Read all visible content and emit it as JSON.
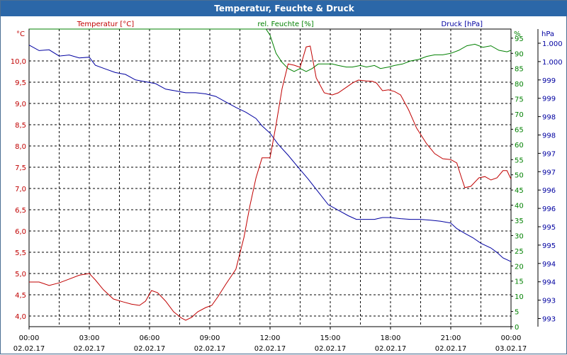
{
  "window": {
    "title": "Temperatur, Feuchte & Druck"
  },
  "legend": {
    "temp": "Temperatur [°C]",
    "hum": "rel. Feuchte [%]",
    "press": "Druck [hPa]"
  },
  "axes": {
    "temp_unit": "°C",
    "hum_unit": "%",
    "press_unit": "hPa",
    "temp_ticks": [
      "10,0",
      "9,5",
      "9,0",
      "8,5",
      "8,0",
      "7,5",
      "7,0",
      "6,5",
      "6,0",
      "5,5",
      "5,0",
      "4,5",
      "4,0"
    ],
    "hum_ticks": [
      "95",
      "90",
      "85",
      "80",
      "75",
      "70",
      "65",
      "60",
      "55",
      "50",
      "45",
      "40",
      "35",
      "30",
      "25",
      "20",
      "15",
      "10",
      "5",
      "0"
    ],
    "press_ticks": [
      "1.000",
      "1.000",
      "999",
      "999",
      "998",
      "998",
      "997",
      "997",
      "996",
      "996",
      "995",
      "995",
      "994",
      "994",
      "993",
      "993"
    ],
    "x_times": [
      "00:00",
      "03:00",
      "06:00",
      "09:00",
      "12:00",
      "15:00",
      "18:00",
      "21:00",
      "00:00"
    ],
    "x_dates": [
      "02.02.17",
      "02.02.17",
      "02.02.17",
      "02.02.17",
      "02.02.17",
      "02.02.17",
      "02.02.17",
      "02.02.17",
      "03.02.17"
    ]
  },
  "colors": {
    "temp": "#c00000",
    "hum": "#008000",
    "press": "#0000a0",
    "title_bg": "#2b67a8"
  },
  "chart_data": {
    "type": "line",
    "title": "Temperatur, Feuchte & Druck",
    "x_unit": "hours since 02.02.17 00:00",
    "xlim": [
      0,
      24
    ],
    "grid": true,
    "series": [
      {
        "name": "Temperatur [°C]",
        "axis": "left",
        "ylim": [
          3.75,
          10.75
        ],
        "points": [
          [
            0,
            4.8
          ],
          [
            0.5,
            4.8
          ],
          [
            1,
            4.72
          ],
          [
            1.5,
            4.78
          ],
          [
            2,
            4.87
          ],
          [
            2.5,
            4.96
          ],
          [
            3,
            5.0
          ],
          [
            3.3,
            4.85
          ],
          [
            3.7,
            4.62
          ],
          [
            4.2,
            4.4
          ],
          [
            4.7,
            4.33
          ],
          [
            5.1,
            4.28
          ],
          [
            5.5,
            4.25
          ],
          [
            5.8,
            4.35
          ],
          [
            6.1,
            4.6
          ],
          [
            6.4,
            4.55
          ],
          [
            6.8,
            4.35
          ],
          [
            7.2,
            4.1
          ],
          [
            7.6,
            3.95
          ],
          [
            7.8,
            3.9
          ],
          [
            8.1,
            3.97
          ],
          [
            8.4,
            4.1
          ],
          [
            8.8,
            4.2
          ],
          [
            9.1,
            4.25
          ],
          [
            9.4,
            4.45
          ],
          [
            9.8,
            4.75
          ],
          [
            10.3,
            5.1
          ],
          [
            10.7,
            5.85
          ],
          [
            11.0,
            6.6
          ],
          [
            11.3,
            7.25
          ],
          [
            11.6,
            7.72
          ],
          [
            12.0,
            7.72
          ],
          [
            12.3,
            8.5
          ],
          [
            12.6,
            9.35
          ],
          [
            12.9,
            9.93
          ],
          [
            13.2,
            9.9
          ],
          [
            13.5,
            9.85
          ],
          [
            13.8,
            10.33
          ],
          [
            14.0,
            10.35
          ],
          [
            14.3,
            9.6
          ],
          [
            14.7,
            9.25
          ],
          [
            15.1,
            9.2
          ],
          [
            15.4,
            9.25
          ],
          [
            15.8,
            9.38
          ],
          [
            16.1,
            9.48
          ],
          [
            16.4,
            9.55
          ],
          [
            16.8,
            9.53
          ],
          [
            17.1,
            9.52
          ],
          [
            17.3,
            9.48
          ],
          [
            17.6,
            9.3
          ],
          [
            17.9,
            9.32
          ],
          [
            18.2,
            9.28
          ],
          [
            18.5,
            9.2
          ],
          [
            18.9,
            8.85
          ],
          [
            19.3,
            8.42
          ],
          [
            19.8,
            8.05
          ],
          [
            20.2,
            7.82
          ],
          [
            20.6,
            7.7
          ],
          [
            21.0,
            7.68
          ],
          [
            21.3,
            7.6
          ],
          [
            21.5,
            7.3
          ],
          [
            21.7,
            7.02
          ],
          [
            22.0,
            7.05
          ],
          [
            22.4,
            7.25
          ],
          [
            22.7,
            7.28
          ],
          [
            23.0,
            7.2
          ],
          [
            23.3,
            7.25
          ],
          [
            23.6,
            7.42
          ],
          [
            23.8,
            7.42
          ],
          [
            24.0,
            7.22
          ]
        ]
      },
      {
        "name": "rel. Feuchte [%]",
        "axis": "right-1",
        "ylim": [
          0,
          98
        ],
        "points": [
          [
            0,
            98
          ],
          [
            11.8,
            98
          ],
          [
            12.0,
            96
          ],
          [
            12.3,
            90
          ],
          [
            12.6,
            87
          ],
          [
            12.9,
            85
          ],
          [
            13.2,
            84
          ],
          [
            13.5,
            85
          ],
          [
            13.8,
            84
          ],
          [
            14.1,
            85
          ],
          [
            14.4,
            86.5
          ],
          [
            14.8,
            86.5
          ],
          [
            15.1,
            86.5
          ],
          [
            15.4,
            86
          ],
          [
            15.8,
            85.5
          ],
          [
            16.1,
            85.5
          ],
          [
            16.5,
            86
          ],
          [
            16.8,
            85.5
          ],
          [
            17.2,
            86
          ],
          [
            17.5,
            85
          ],
          [
            17.9,
            85.5
          ],
          [
            18.2,
            86
          ],
          [
            18.6,
            86.5
          ],
          [
            19.0,
            87.5
          ],
          [
            19.4,
            88
          ],
          [
            19.8,
            89
          ],
          [
            20.2,
            89.5
          ],
          [
            20.6,
            89.5
          ],
          [
            21.0,
            90
          ],
          [
            21.4,
            91
          ],
          [
            21.8,
            92.5
          ],
          [
            22.2,
            93
          ],
          [
            22.6,
            92
          ],
          [
            23.0,
            92.5
          ],
          [
            23.4,
            91
          ],
          [
            23.8,
            90.5
          ],
          [
            24.0,
            91
          ]
        ]
      },
      {
        "name": "Druck [hPa]",
        "axis": "right-2",
        "ylim": [
          992.75,
          1000.25
        ],
        "points": [
          [
            0,
            999.95
          ],
          [
            0.5,
            999.8
          ],
          [
            1,
            999.82
          ],
          [
            1.5,
            999.65
          ],
          [
            2,
            999.68
          ],
          [
            2.5,
            999.6
          ],
          [
            3,
            999.62
          ],
          [
            3.3,
            999.4
          ],
          [
            3.8,
            999.3
          ],
          [
            4.3,
            999.2
          ],
          [
            4.8,
            999.15
          ],
          [
            5.3,
            999.0
          ],
          [
            5.8,
            998.95
          ],
          [
            6.3,
            998.9
          ],
          [
            6.8,
            998.75
          ],
          [
            7.3,
            998.7
          ],
          [
            7.8,
            998.65
          ],
          [
            8.3,
            998.65
          ],
          [
            8.8,
            998.62
          ],
          [
            9.3,
            998.55
          ],
          [
            9.8,
            998.4
          ],
          [
            10.3,
            998.25
          ],
          [
            10.8,
            998.12
          ],
          [
            11.3,
            997.95
          ],
          [
            11.6,
            997.75
          ],
          [
            12.0,
            997.55
          ],
          [
            12.4,
            997.25
          ],
          [
            12.9,
            996.95
          ],
          [
            13.4,
            996.62
          ],
          [
            13.9,
            996.3
          ],
          [
            14.4,
            995.95
          ],
          [
            14.9,
            995.6
          ],
          [
            15.4,
            995.45
          ],
          [
            15.9,
            995.3
          ],
          [
            16.3,
            995.2
          ],
          [
            16.7,
            995.2
          ],
          [
            17.2,
            995.2
          ],
          [
            17.6,
            995.25
          ],
          [
            18.0,
            995.25
          ],
          [
            18.5,
            995.22
          ],
          [
            19.0,
            995.2
          ],
          [
            19.5,
            995.2
          ],
          [
            20.0,
            995.18
          ],
          [
            20.5,
            995.15
          ],
          [
            21.0,
            995.1
          ],
          [
            21.3,
            994.95
          ],
          [
            21.7,
            994.82
          ],
          [
            22.1,
            994.7
          ],
          [
            22.5,
            994.55
          ],
          [
            23.0,
            994.42
          ],
          [
            23.3,
            994.3
          ],
          [
            23.6,
            994.15
          ],
          [
            24.0,
            994.05
          ]
        ]
      }
    ]
  }
}
